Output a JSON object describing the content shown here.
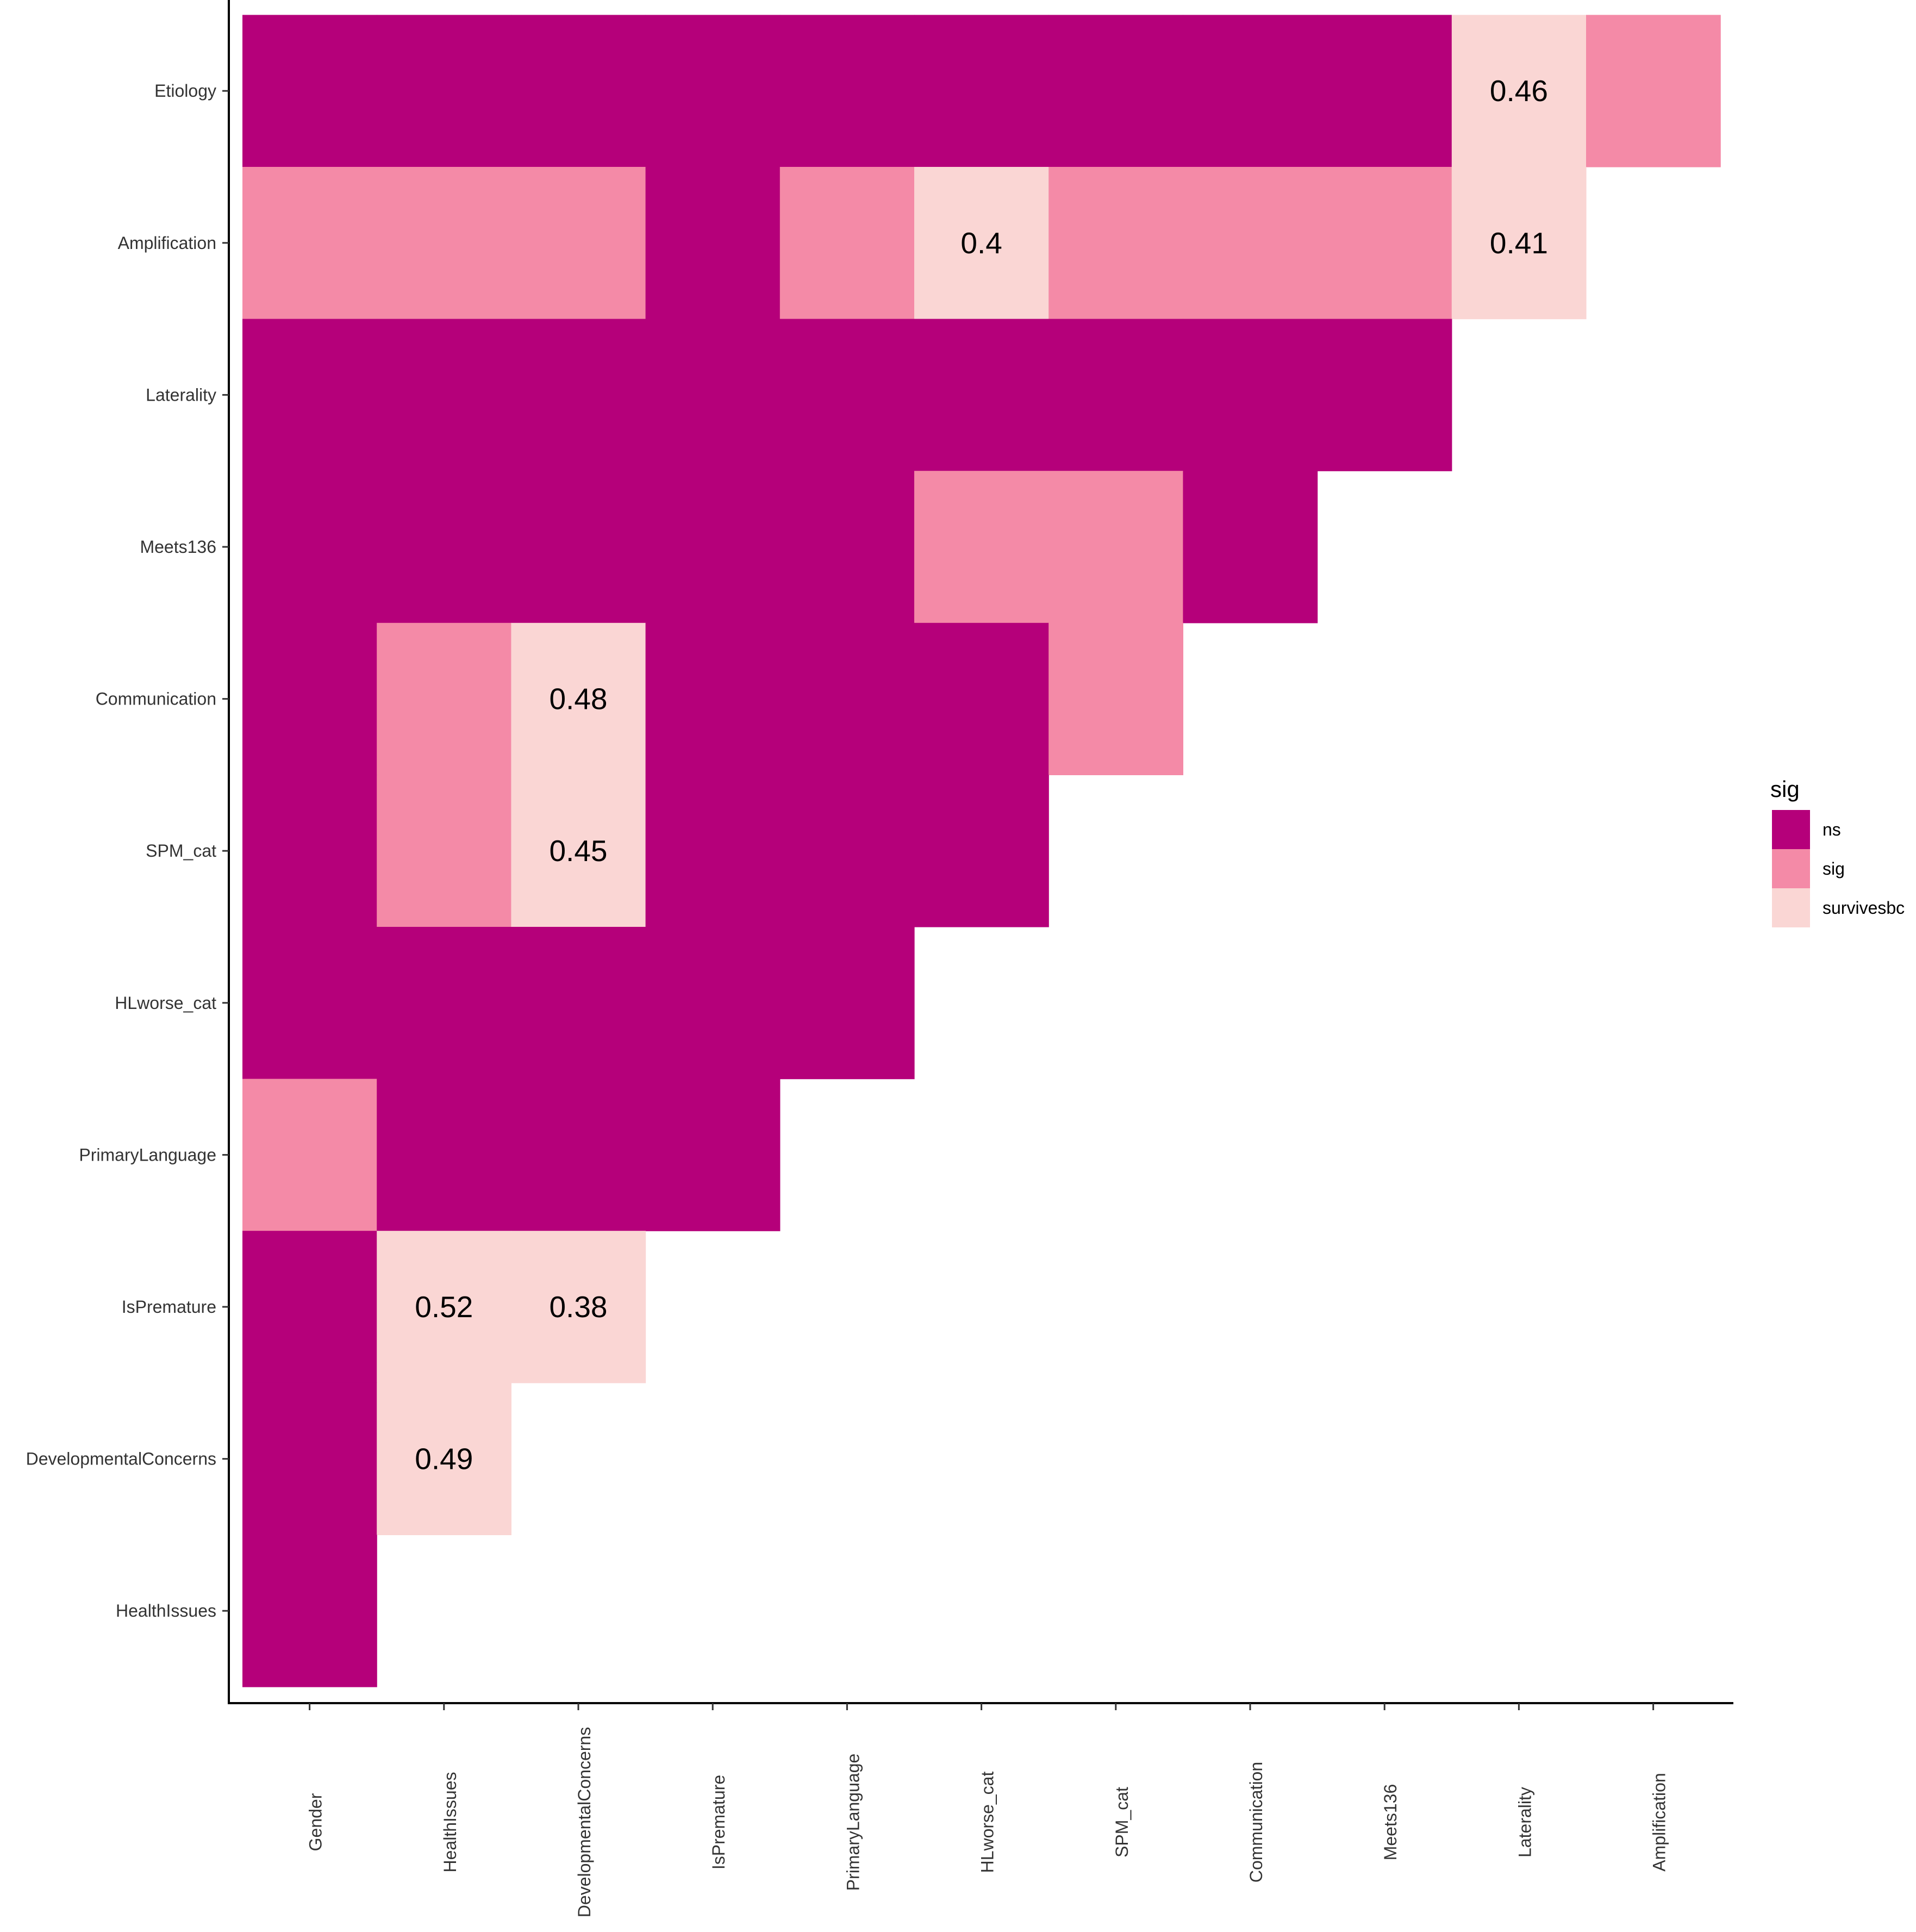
{
  "chart_data": {
    "type": "heatmap",
    "x_categories": [
      "Gender",
      "HealthIssues",
      "DevelopmentalConcerns",
      "IsPremature",
      "PrimaryLanguage",
      "HLworse_cat",
      "SPM_cat",
      "Communication",
      "Meets136",
      "Laterality",
      "Amplification"
    ],
    "y_categories": [
      "HealthIssues",
      "DevelopmentalConcerns",
      "IsPremature",
      "PrimaryLanguage",
      "HLworse_cat",
      "SPM_cat",
      "Communication",
      "Meets136",
      "Laterality",
      "Amplification",
      "Etiology"
    ],
    "cells": {
      "Etiology": [
        "ns",
        "ns",
        "ns",
        "ns",
        "ns",
        "ns",
        "ns",
        "ns",
        "ns",
        "survivesbc",
        "sig"
      ],
      "Amplification": [
        "sig",
        "sig",
        "sig",
        "ns",
        "sig",
        "survivesbc",
        "sig",
        "sig",
        "sig",
        "survivesbc"
      ],
      "Laterality": [
        "ns",
        "ns",
        "ns",
        "ns",
        "ns",
        "ns",
        "ns",
        "ns",
        "ns"
      ],
      "Meets136": [
        "ns",
        "ns",
        "ns",
        "ns",
        "ns",
        "sig",
        "sig",
        "ns"
      ],
      "Communication": [
        "ns",
        "sig",
        "survivesbc",
        "ns",
        "ns",
        "ns",
        "sig"
      ],
      "SPM_cat": [
        "ns",
        "sig",
        "survivesbc",
        "ns",
        "ns",
        "ns"
      ],
      "HLworse_cat": [
        "ns",
        "ns",
        "ns",
        "ns",
        "ns"
      ],
      "PrimaryLanguage": [
        "sig",
        "ns",
        "ns",
        "ns"
      ],
      "IsPremature": [
        "ns",
        "survivesbc",
        "survivesbc"
      ],
      "DevelopmentalConcerns": [
        "ns",
        "survivesbc"
      ],
      "HealthIssues": [
        "ns"
      ]
    },
    "labels": [
      {
        "y": "Etiology",
        "x": "Laterality",
        "text": "0.46"
      },
      {
        "y": "Amplification",
        "x": "HLworse_cat",
        "text": "0.4"
      },
      {
        "y": "Amplification",
        "x": "Laterality",
        "text": "0.41"
      },
      {
        "y": "Communication",
        "x": "DevelopmentalConcerns",
        "text": "0.48"
      },
      {
        "y": "SPM_cat",
        "x": "DevelopmentalConcerns",
        "text": "0.45"
      },
      {
        "y": "IsPremature",
        "x": "HealthIssues",
        "text": "0.52"
      },
      {
        "y": "IsPremature",
        "x": "DevelopmentalConcerns",
        "text": "0.38"
      },
      {
        "y": "DevelopmentalConcerns",
        "x": "HealthIssues",
        "text": "0.49"
      }
    ],
    "legend": {
      "title": "sig",
      "position": "right",
      "entries": [
        {
          "label": "ns",
          "color": "#B5007A"
        },
        {
          "label": "sig",
          "color": "#F48AA7"
        },
        {
          "label": "survivesbc",
          "color": "#FAD6D4"
        }
      ]
    },
    "grid": false
  }
}
